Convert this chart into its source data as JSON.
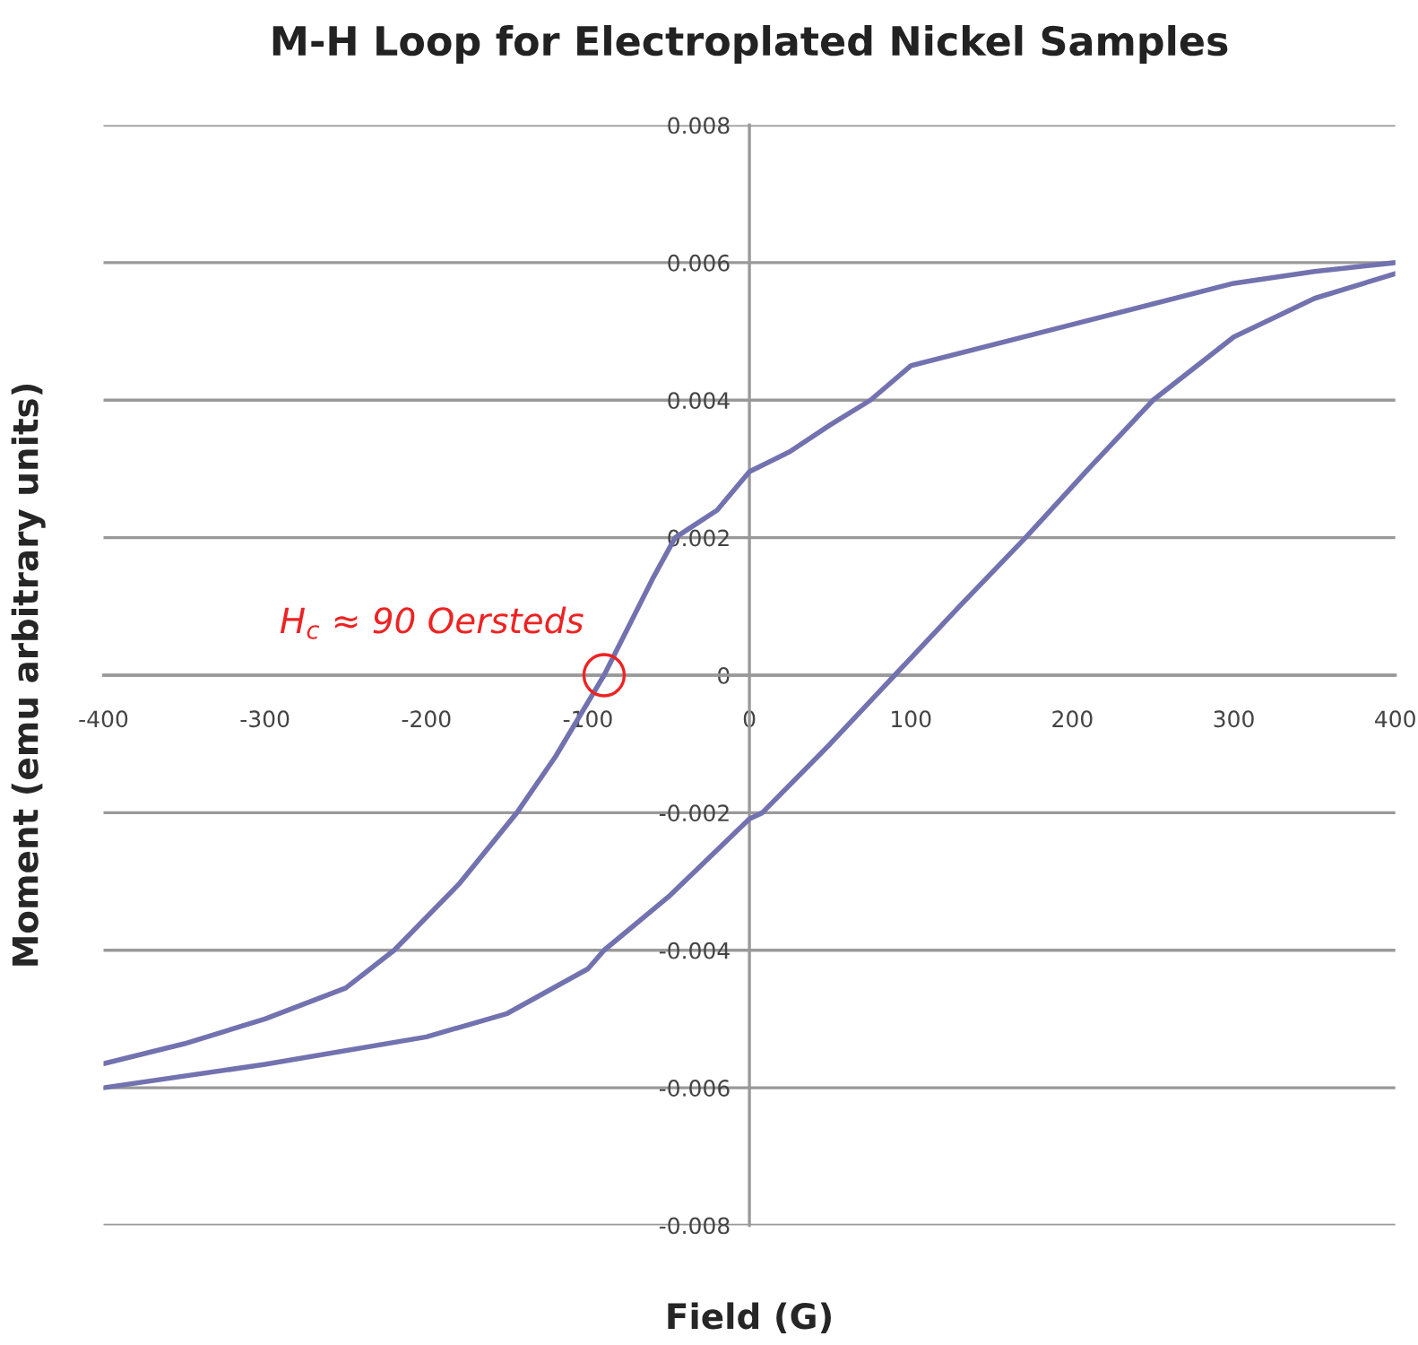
{
  "chart_data": {
    "type": "line",
    "title": "M-H Loop for Electroplated Nickel Samples",
    "xlabel": "Field (G)",
    "ylabel": "Moment (emu arbitrary units)",
    "series": [
      {
        "color": "#7272b0",
        "x": [
          400,
          350,
          300,
          200,
          100,
          75,
          50,
          25,
          0,
          -20,
          -46,
          -60,
          -90,
          -120,
          -144,
          -180,
          -220,
          -250,
          -300,
          -350,
          -400
        ],
        "values": [
          0.006,
          0.00587,
          0.0057,
          0.0051,
          0.0045,
          0.004,
          0.00364,
          0.00325,
          0.00296,
          0.0024,
          0.002,
          0.0014,
          0,
          -0.00118,
          -0.002,
          -0.00304,
          -0.004,
          -0.00455,
          -0.005,
          -0.00536,
          -0.00565
        ]
      },
      {
        "color": "#7272b0",
        "x": [
          -400,
          -300,
          -200,
          -150,
          -100,
          -90,
          -50,
          0,
          8,
          50,
          90,
          130,
          171,
          210,
          250,
          300,
          350,
          400
        ],
        "values": [
          -0.006,
          -0.00566,
          -0.00526,
          -0.00492,
          -0.00427,
          -0.004,
          -0.00322,
          -0.00209,
          -0.002,
          -0.001,
          0,
          0.001,
          0.002,
          0.003,
          0.004,
          0.00492,
          0.00548,
          0.00584
        ]
      }
    ],
    "xlim": [
      -400,
      400
    ],
    "xticks": [
      -400,
      -300,
      -200,
      -100,
      0,
      100,
      200,
      300,
      400
    ],
    "ylim": [
      -0.008,
      0.008
    ],
    "yticks": [
      -0.008,
      -0.006,
      -0.004,
      -0.002,
      0,
      0.002,
      0.004,
      0.006,
      0.008
    ],
    "grid": "y",
    "marker": "none",
    "line_style": "solid",
    "annotations": [
      {
        "text": "H$_{c}$ ≈ 90 Oersteds",
        "x": -90,
        "y": 0
      }
    ]
  }
}
